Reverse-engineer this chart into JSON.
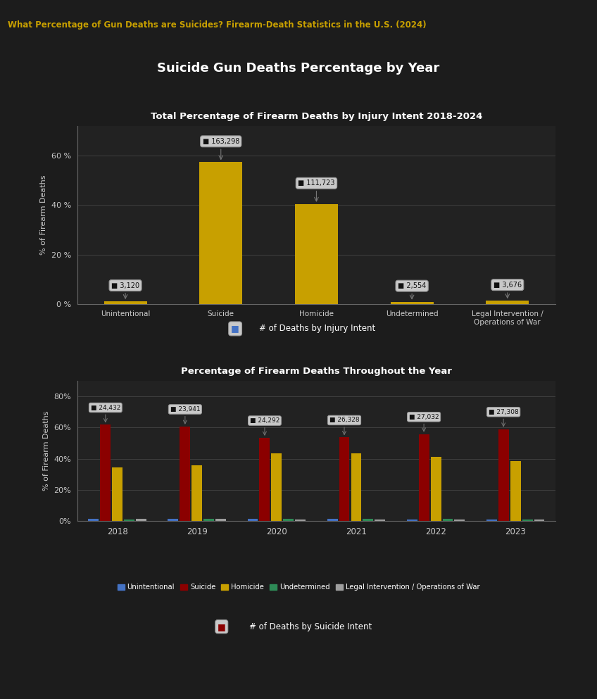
{
  "bg_outer": "#1c1c1c",
  "bg_panel": "#282828",
  "bg_inner": "#222222",
  "header_title": "What Percentage of Gun Deaths are Suicides? Firearm-Death Statistics in the U.S. (2024)",
  "header_color": "#c8a000",
  "main_title": "Suicide Gun Deaths Percentage by Year",
  "main_title_color": "#ffffff",
  "chart1_title": "Total Percentage of Firearm Deaths by Injury Intent 2018-2024",
  "chart1_categories": [
    "Unintentional",
    "Suicide",
    "Homicide",
    "Undetermined",
    "Legal Intervention /\nOperations of War"
  ],
  "chart1_values": [
    1.1,
    57.3,
    40.4,
    0.92,
    1.33
  ],
  "chart1_counts": [
    "3,120",
    "163,298",
    "111,723",
    "2,554",
    "3,676"
  ],
  "chart1_bar_color": "#c8a000",
  "chart1_ylabel": "% of Firearm Deaths",
  "chart1_yticks": [
    0,
    20,
    40,
    60
  ],
  "chart1_ytick_labels": [
    "0 %",
    "20 %",
    "40 %",
    "60 %"
  ],
  "chart1_legend_label": "# of Deaths by Injury Intent",
  "chart2_title": "Percentage of Firearm Deaths Throughout the Year",
  "chart2_years": [
    2018,
    2019,
    2020,
    2021,
    2022,
    2023
  ],
  "chart2_unintentional": [
    1.46,
    1.37,
    1.22,
    1.13,
    1.0,
    0.97
  ],
  "chart2_suicide": [
    61.8,
    60.7,
    53.4,
    53.7,
    55.8,
    59.0
  ],
  "chart2_homicide": [
    34.5,
    35.8,
    43.2,
    43.3,
    41.1,
    38.2
  ],
  "chart2_undetermined": [
    1.0,
    1.1,
    1.2,
    1.1,
    1.1,
    0.9
  ],
  "chart2_legal": [
    1.2,
    1.1,
    0.98,
    0.87,
    1.0,
    0.93
  ],
  "chart2_suicide_counts": [
    "24,432",
    "23,941",
    "24,292",
    "26,328",
    "27,032",
    "27,308"
  ],
  "chart2_ylabel": "% of Firearm Deaths",
  "chart2_yticks": [
    0,
    20,
    40,
    60,
    80
  ],
  "chart2_ytick_labels": [
    "0%",
    "20%",
    "40%",
    "60%",
    "80%"
  ],
  "chart2_legend_labels": [
    "Unintentional",
    "Suicide",
    "Homicide",
    "Undetermined",
    "Legal Intervention / Operations of War"
  ],
  "chart2_legend_colors": [
    "#4472c4",
    "#8b0000",
    "#c8a000",
    "#2e8b57",
    "#9e9e9e"
  ],
  "chart2_legend2_label": "# of Deaths by Suicide Intent",
  "bar_colors_list": [
    "#4472c4",
    "#8b0000",
    "#c8a000",
    "#2e8b57",
    "#9e9e9e"
  ],
  "annotation_bg": "#c8c8c8",
  "annotation_text_color": "#111111",
  "grid_color": "#444444",
  "tick_color": "#cccccc",
  "axis_label_color": "#cccccc",
  "text_color": "#ffffff",
  "panel_bg": "#2b2b2b",
  "panel_edge": "#555555"
}
